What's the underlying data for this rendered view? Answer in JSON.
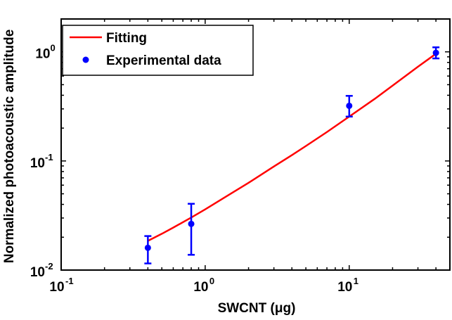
{
  "chart_data": {
    "type": "scatter",
    "xlabel": "SWCNT (μg)",
    "ylabel": "Normalized photoacoustic amplitude",
    "xscale": "log",
    "yscale": "log",
    "xlim": [
      0.1,
      50
    ],
    "ylim": [
      0.01,
      2
    ],
    "grid": false,
    "legend_position": "top-left",
    "x_ticks": [
      {
        "value": 0.1,
        "base": "10",
        "exp": "-1"
      },
      {
        "value": 1,
        "base": "10",
        "exp": "0"
      },
      {
        "value": 10,
        "base": "10",
        "exp": "1"
      }
    ],
    "y_ticks": [
      {
        "value": 0.01,
        "base": "10",
        "exp": "-2"
      },
      {
        "value": 0.1,
        "base": "10",
        "exp": "-1"
      },
      {
        "value": 1,
        "base": "10",
        "exp": "0"
      }
    ],
    "series": [
      {
        "name": "Fitting",
        "kind": "line",
        "color": "#ff0000",
        "x": [
          0.4,
          0.5,
          0.6,
          0.8,
          1.0,
          1.5,
          2,
          3,
          4,
          5,
          7,
          10,
          15,
          20,
          30,
          40
        ],
        "y": [
          0.0185,
          0.0215,
          0.0245,
          0.0303,
          0.036,
          0.05,
          0.063,
          0.089,
          0.113,
          0.137,
          0.184,
          0.255,
          0.37,
          0.49,
          0.73,
          0.96
        ]
      },
      {
        "name": "Experimental data",
        "kind": "points",
        "color": "#0000ff",
        "points": [
          {
            "x": 0.4,
            "y": 0.016,
            "low": 0.0115,
            "high": 0.0205
          },
          {
            "x": 0.8,
            "y": 0.0265,
            "low": 0.0138,
            "high": 0.0405
          },
          {
            "x": 10,
            "y": 0.32,
            "low": 0.255,
            "high": 0.395
          },
          {
            "x": 40,
            "y": 0.98,
            "low": 0.87,
            "high": 1.1
          }
        ]
      }
    ]
  }
}
